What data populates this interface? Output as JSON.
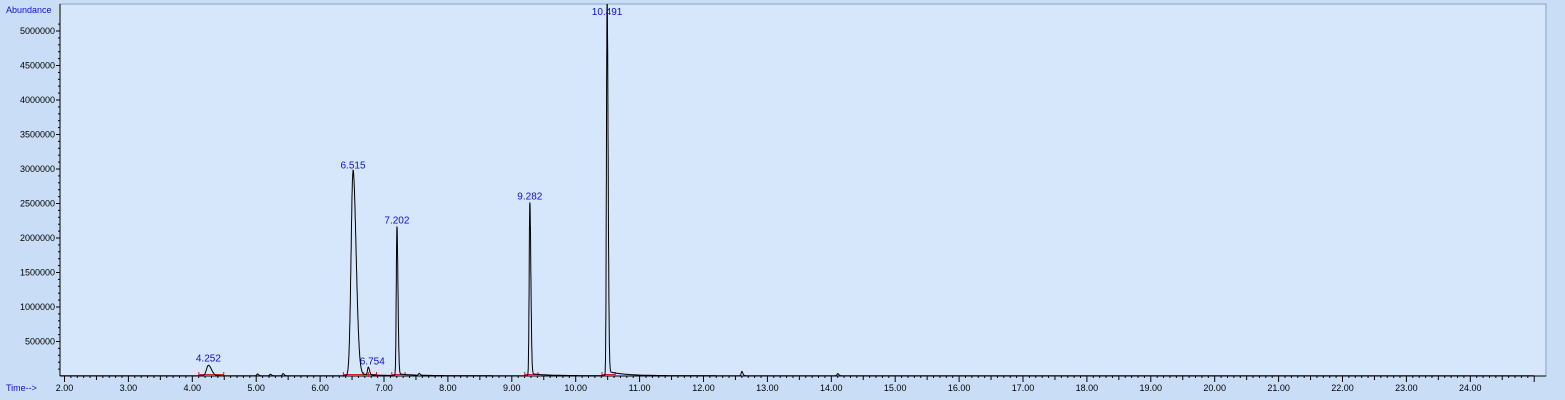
{
  "chart_data": {
    "type": "line",
    "title": "",
    "ylabel": "Abundance",
    "xlabel": "Time-->",
    "xlim": [
      1.8,
      25.0
    ],
    "ylim": [
      0,
      5200000
    ],
    "x_ticks": [
      2.0,
      3.0,
      4.0,
      5.0,
      6.0,
      7.0,
      8.0,
      9.0,
      10.0,
      11.0,
      12.0,
      13.0,
      14.0,
      15.0,
      16.0,
      17.0,
      18.0,
      19.0,
      20.0,
      21.0,
      22.0,
      23.0,
      24.0
    ],
    "x_tick_labels": [
      "2.00",
      "3.00",
      "4.00",
      "5.00",
      "6.00",
      "7.00",
      "8.00",
      "9.00",
      "10.00",
      "11.00",
      "12.00",
      "13.00",
      "14.00",
      "15.00",
      "16.00",
      "17.00",
      "18.00",
      "19.00",
      "20.00",
      "21.00",
      "22.00",
      "23.00",
      "24.00"
    ],
    "y_ticks": [
      500000,
      1000000,
      1500000,
      2000000,
      2500000,
      3000000,
      3500000,
      4000000,
      4500000,
      5000000
    ],
    "y_tick_labels": [
      "500000",
      "1000000",
      "1500000",
      "2000000",
      "2500000",
      "3000000",
      "3500000",
      "4000000",
      "4500000",
      "5000000"
    ],
    "grid": false,
    "colors": {
      "background": "#d6e6fb",
      "trace": "#000000",
      "labels": "#1010c8",
      "baseline": "#d02020"
    },
    "peaks": [
      {
        "rt": 4.252,
        "label": "4.252",
        "height": 150000,
        "width": 0.03
      },
      {
        "rt": 6.515,
        "label": "6.515",
        "height": 2950000,
        "width": 0.03
      },
      {
        "rt": 6.754,
        "label": "6.754",
        "height": 110000,
        "width": 0.012
      },
      {
        "rt": 7.202,
        "label": "7.202",
        "height": 2150000,
        "width": 0.01
      },
      {
        "rt": 9.282,
        "label": "9.282",
        "height": 2500000,
        "width": 0.01
      },
      {
        "rt": 10.491,
        "label": "10.491",
        "height": 5400000,
        "width": 0.01
      }
    ],
    "minor_peaks": [
      {
        "rt": 5.02,
        "height": 25000
      },
      {
        "rt": 5.22,
        "height": 20000
      },
      {
        "rt": 5.42,
        "height": 30000
      },
      {
        "rt": 7.55,
        "height": 25000
      },
      {
        "rt": 12.6,
        "height": 60000
      },
      {
        "rt": 14.1,
        "height": 30000
      }
    ]
  }
}
